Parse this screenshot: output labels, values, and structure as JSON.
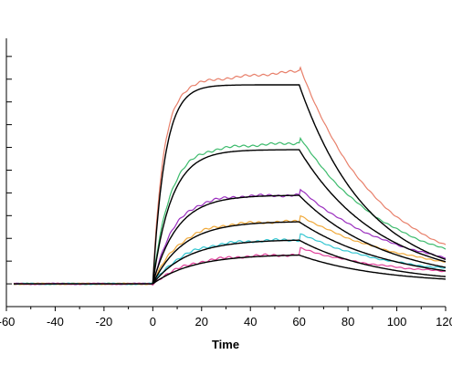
{
  "chart_data": {
    "type": "line",
    "title": "",
    "xlabel": "Time",
    "ylabel": "",
    "xlim": [
      -60,
      120
    ],
    "ylim": [
      -2,
      24
    ],
    "x_ticks": [
      -60,
      -40,
      -20,
      0,
      20,
      40,
      60,
      80,
      100,
      120
    ],
    "x_tick_labels": [
      "-60",
      "-40",
      "-20",
      "0",
      "20",
      "40",
      "60",
      "80",
      "100",
      "120"
    ],
    "y_ticks": [
      -2,
      0,
      2,
      4,
      6,
      8,
      10,
      12,
      14,
      16,
      18,
      20,
      22,
      24
    ],
    "y_tick_labels_shown": false,
    "grid": false,
    "legend": "none",
    "association_end": 60,
    "fit_color": "#000000",
    "series": [
      {
        "color": "#e8806b",
        "kd": 0.035,
        "rmax": 17.5,
        "ka": 0.2,
        "drift": 0.02
      },
      {
        "color": "#3dbb6d",
        "kd": 0.03,
        "rmax": 11.8,
        "ka": 0.13,
        "drift": 0.01
      },
      {
        "color": "#9b2fbf",
        "kd": 0.028,
        "rmax": 7.8,
        "ka": 0.1,
        "drift": 0.0
      },
      {
        "color": "#f0a93a",
        "kd": 0.026,
        "rmax": 5.5,
        "ka": 0.08,
        "drift": 0.0
      },
      {
        "color": "#34c6d1",
        "kd": 0.03,
        "rmax": 3.9,
        "ka": 0.07,
        "drift": 0.0
      },
      {
        "color": "#e0409a",
        "kd": 0.03,
        "rmax": 2.6,
        "ka": 0.06,
        "drift": 0.0
      }
    ]
  }
}
